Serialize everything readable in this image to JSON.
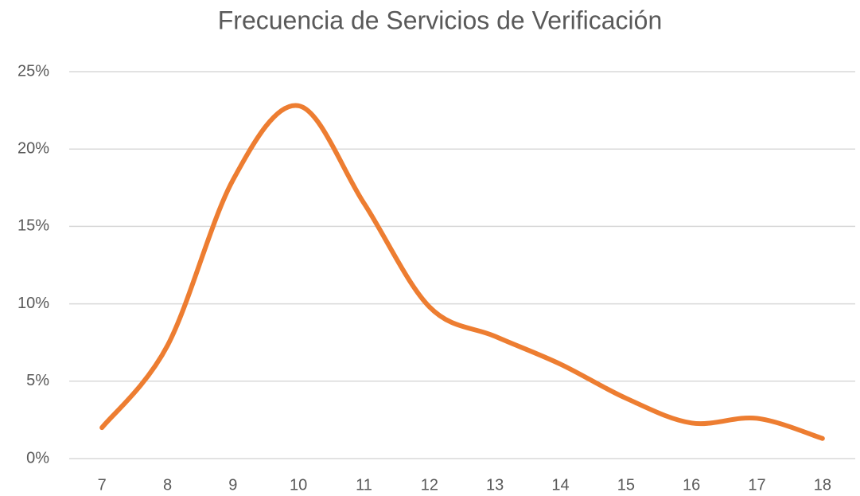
{
  "chart_data": {
    "type": "line",
    "title": "Frecuencia de Servicios de Verificación",
    "categories": [
      "7",
      "8",
      "9",
      "10",
      "11",
      "12",
      "13",
      "14",
      "15",
      "16",
      "17",
      "18"
    ],
    "series": [
      {
        "name": "Frecuencia",
        "color": "#ed7d31",
        "values": [
          2,
          7.3,
          18,
          22.8,
          16.5,
          9.8,
          7.9,
          6.1,
          3.9,
          2.3,
          2.6,
          1.3
        ]
      }
    ],
    "ylim": [
      0,
      25
    ],
    "yticks": [
      {
        "value": 0,
        "label": "0%"
      },
      {
        "value": 5,
        "label": "5%"
      },
      {
        "value": 10,
        "label": "10%"
      },
      {
        "value": 15,
        "label": "15%"
      },
      {
        "value": 20,
        "label": "20%"
      },
      {
        "value": 25,
        "label": "25%"
      }
    ],
    "grid": true,
    "smooth": true
  }
}
